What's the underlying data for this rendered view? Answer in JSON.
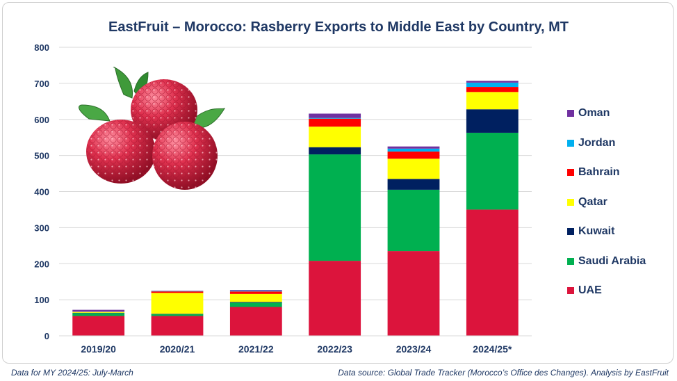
{
  "chart_data": {
    "type": "bar",
    "stacked": true,
    "title": "EastFruit – Morocco: Rasberry Exports to Middle East by Country, MT",
    "xlabel": "",
    "ylabel": "",
    "ylim": [
      0,
      800
    ],
    "yticks": [
      "0",
      "100",
      "200",
      "300",
      "400",
      "500",
      "600",
      "700",
      "800"
    ],
    "grid": true,
    "legend_position": "right",
    "categories": [
      "2019/20",
      "2020/21",
      "2021/22",
      "2022/23",
      "2023/24",
      "2024/25*"
    ],
    "series": [
      {
        "name": "UAE",
        "color": "#dc143c",
        "values": [
          55,
          55,
          80,
          208,
          235,
          350
        ]
      },
      {
        "name": "Saudi Arabia",
        "color": "#00b050",
        "values": [
          8,
          5,
          12,
          295,
          170,
          213
        ]
      },
      {
        "name": "Kuwait",
        "color": "#002060",
        "values": [
          1,
          1,
          2,
          20,
          30,
          65
        ]
      },
      {
        "name": "Qatar",
        "color": "#ffff00",
        "values": [
          2,
          58,
          22,
          57,
          56,
          48
        ]
      },
      {
        "name": "Bahrain",
        "color": "#ff0000",
        "values": [
          1,
          4,
          7,
          22,
          20,
          14
        ]
      },
      {
        "name": "Jordan",
        "color": "#00b0f0",
        "values": [
          1,
          1,
          2,
          2,
          8,
          12
        ]
      },
      {
        "name": "Oman",
        "color": "#7030a0",
        "values": [
          4,
          1,
          2,
          12,
          6,
          5
        ]
      }
    ]
  },
  "legend_order": [
    "Oman",
    "Jordan",
    "Bahrain",
    "Qatar",
    "Kuwait",
    "Saudi Arabia",
    "UAE"
  ],
  "footer": {
    "left": "Data for MY 2024/25: July-March",
    "right": "Data source: Global Trade Tracker (Morocco’s Office des Changes). Analysis by  EastFruit"
  },
  "decoration": {
    "image": "raspberries-illustration"
  }
}
